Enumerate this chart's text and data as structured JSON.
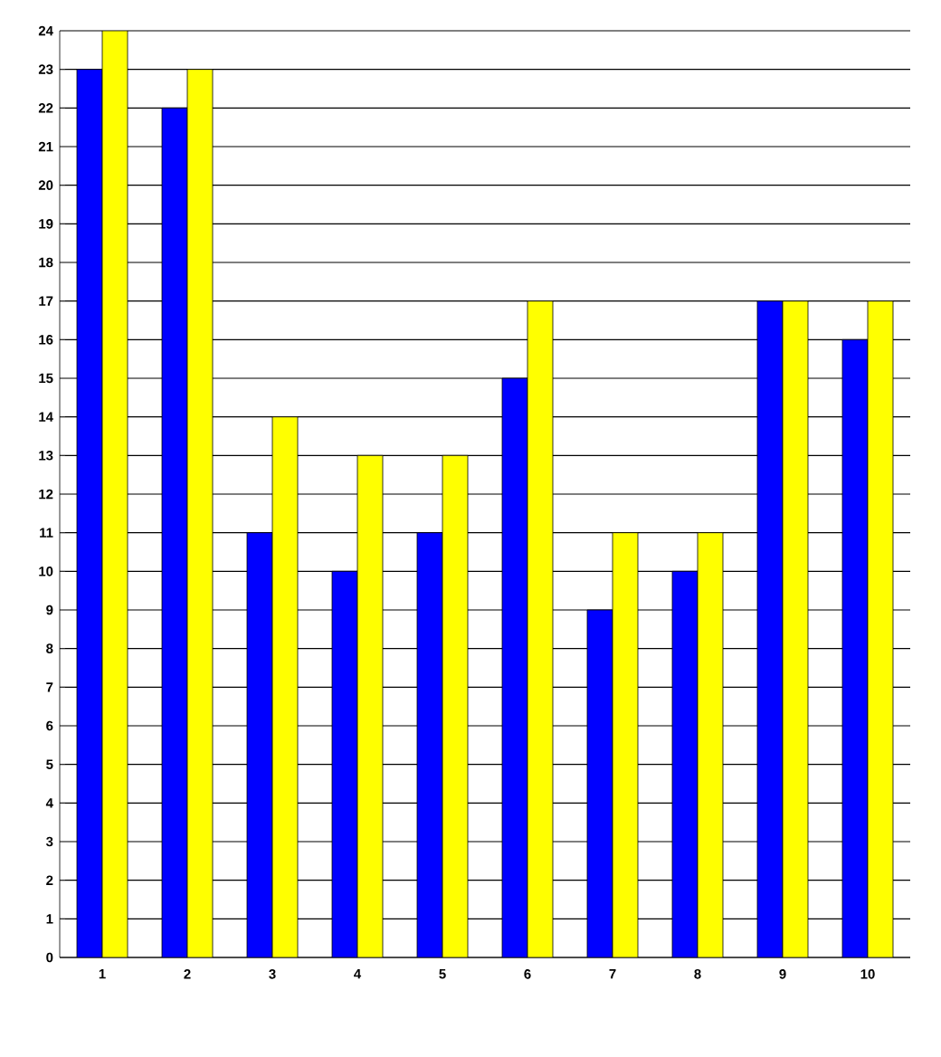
{
  "chart_data": {
    "type": "bar",
    "categories": [
      "1",
      "2",
      "3",
      "4",
      "5",
      "6",
      "7",
      "8",
      "9",
      "10"
    ],
    "series": [
      {
        "color": "#0000ff",
        "values": [
          23,
          22,
          11,
          10,
          11,
          15,
          9,
          10,
          17,
          16
        ]
      },
      {
        "color": "#ffff00",
        "values": [
          24,
          23,
          14,
          13,
          13,
          17,
          11,
          11,
          17,
          17
        ]
      }
    ],
    "ylim": [
      0,
      24
    ],
    "yticks": [
      0,
      1,
      2,
      3,
      4,
      5,
      6,
      7,
      8,
      9,
      10,
      11,
      12,
      13,
      14,
      15,
      16,
      17,
      18,
      19,
      20,
      21,
      22,
      23,
      24
    ],
    "grid": "y"
  }
}
